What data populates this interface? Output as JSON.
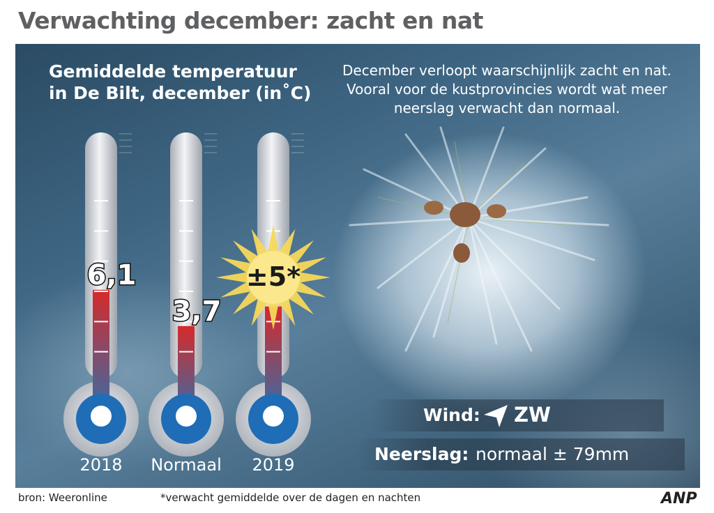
{
  "title": "Verwachting december: zacht en nat",
  "description": "December verloopt waarschijnlijk zacht en nat. Vooral voor de kustprovincies wordt wat meer neerslag verwacht dan normaal.",
  "chart_data": {
    "type": "bar",
    "title": "Gemiddelde temperatuur in De Bilt, december (in˚C)",
    "title_lines": [
      "Gemiddelde temperatuur",
      "in De Bilt, december (in˚C)"
    ],
    "categories": [
      "2018",
      "Normaal",
      "2019"
    ],
    "values": [
      6.1,
      3.7,
      5
    ],
    "value_labels": [
      "6,1",
      "3,7",
      "±5*"
    ],
    "ylim": [
      0,
      15
    ],
    "xlabel": "",
    "ylabel": ""
  },
  "wind": {
    "label": "Wind:",
    "value": "ZW",
    "icon": "wind-direction-arrow-icon"
  },
  "precipitation": {
    "label": "Neerslag:",
    "value": "normaal ± 79mm"
  },
  "source": "bron: Weeronline",
  "footnote": "*verwacht gemiddelde over de dagen en nachten",
  "logo_text": "ANP",
  "colors": {
    "title": "#5f6062",
    "mercury_top": "#d62a2a",
    "mercury_bottom": "#2f6fae",
    "bulb": "#1f6db6",
    "tube": "#d8dbe0",
    "sun": "#f6d85a"
  }
}
